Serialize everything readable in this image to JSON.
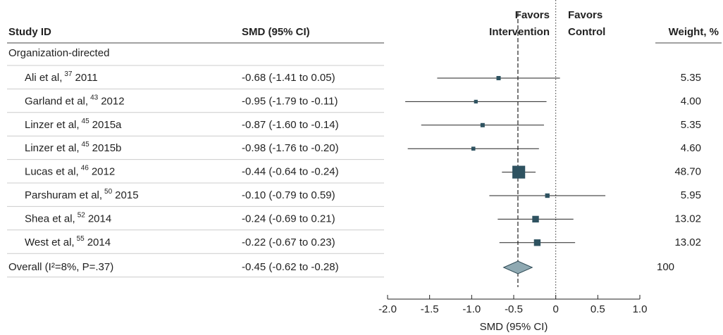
{
  "chart_data": {
    "type": "forest",
    "headers": {
      "study": "Study ID",
      "ci": "SMD (95% CI)",
      "weight": "Weight, %"
    },
    "favors_left": [
      "Favors",
      "Intervention"
    ],
    "favors_right": [
      "Favors",
      "Control"
    ],
    "group": "Organization-directed",
    "studies": [
      {
        "name": "Ali et al,",
        "ref": "37",
        "year": "2011"
      },
      {
        "name": "Garland et al,",
        "ref": "43",
        "year": "2012"
      },
      {
        "name": "Linzer et al,",
        "ref": "45",
        "year": "2015a"
      },
      {
        "name": "Linzer et al,",
        "ref": "45",
        "year": "2015b"
      },
      {
        "name": "Lucas et al,",
        "ref": "46",
        "year": "2012"
      },
      {
        "name": "Parshuram et al,",
        "ref": "50",
        "year": "2015"
      },
      {
        "name": "Shea et al,",
        "ref": "52",
        "year": "2014"
      },
      {
        "name": "West et al,",
        "ref": "55",
        "year": "2014"
      }
    ],
    "estimates": [
      -0.68,
      -0.95,
      -0.87,
      -0.98,
      -0.44,
      -0.1,
      -0.24,
      -0.22
    ],
    "lower": [
      -1.41,
      -1.79,
      -1.6,
      -1.76,
      -0.64,
      -0.79,
      -0.69,
      -0.67
    ],
    "upper": [
      0.05,
      -0.11,
      -0.14,
      -0.2,
      -0.24,
      0.59,
      0.21,
      0.23
    ],
    "value_labels": [
      "-0.68 (-1.41 to 0.05)",
      "-0.95 (-1.79 to -0.11)",
      "-0.87 (-1.60 to -0.14)",
      "-0.98 (-1.76 to -0.20)",
      "-0.44 (-0.64 to -0.24)",
      "-0.10 (-0.79 to 0.59)",
      "-0.24 (-0.69 to 0.21)",
      "-0.22 (-0.67 to 0.23)"
    ],
    "weights": [
      5.35,
      4,
      5.35,
      4.6,
      48.7,
      5.95,
      13.02,
      13.02
    ],
    "weight_labels": [
      "5.35",
      "4.00",
      "5.35",
      "4.60",
      "48.70",
      "5.95",
      "13.02",
      "13.02"
    ],
    "overall": {
      "label": "Overall (I²=8%, P=.37)",
      "estimate": -0.45,
      "lower": -0.62,
      "upper": -0.28,
      "value_label": "-0.45 (-0.62 to -0.28)",
      "weight": 100
    },
    "xlim": [
      -2,
      1
    ],
    "xticks": [
      {
        "value": -2,
        "label": "-2.0"
      },
      {
        "value": -1.5,
        "label": "-1.5"
      },
      {
        "value": -1,
        "label": "-1.0"
      },
      {
        "value": -0.5,
        "label": "-0.5"
      },
      0,
      0.5,
      {
        "value": 1,
        "label": "1.0"
      }
    ],
    "xlabel": "SMD (95% CI)",
    "color": "#2e5260",
    "diamond_color": "#8fa9b2"
  }
}
